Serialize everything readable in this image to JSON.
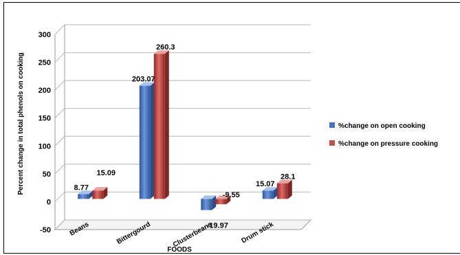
{
  "chart_data": {
    "type": "bar",
    "title": "",
    "xlabel": "FOODS",
    "ylabel": "Percent change in total phenols on cooking",
    "ylim": [
      -50,
      300
    ],
    "yticks": [
      "300",
      "250",
      "200",
      "150",
      "100",
      "50",
      "0",
      "-50"
    ],
    "categories": [
      "Beans",
      "Bittergourd",
      "Clusterbeans",
      "Drum stick"
    ],
    "series": [
      {
        "name": "%change on open cooking",
        "color": "#4472c4",
        "values": [
          8.77,
          203.07,
          -19.97,
          15.07
        ],
        "labels": [
          "8.77",
          "203.07",
          "-19.97",
          "15.07"
        ]
      },
      {
        "name": "%change on pressure cooking",
        "color": "#c0504d",
        "values": [
          15.09,
          260.3,
          -9.55,
          28.1
        ],
        "labels": [
          "15.09",
          "260.3",
          "-9.55",
          "28.1"
        ]
      }
    ],
    "grid": true,
    "legend_position": "right"
  }
}
